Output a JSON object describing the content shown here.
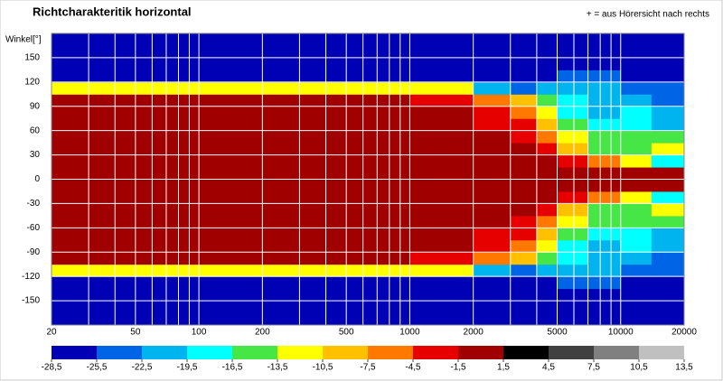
{
  "chart_data": {
    "type": "heatmap",
    "title": "Richtcharakteritik horizontal",
    "annotation": "+ = aus Hörersicht nach rechts",
    "y_label": "Winkel[°]",
    "log_x": true,
    "grid": true,
    "xlim": [
      20,
      20000
    ],
    "xticks": [
      20,
      50,
      100,
      200,
      500,
      1000,
      2000,
      5000,
      10000,
      20000
    ],
    "x_minor_ticks": [
      30,
      40,
      60,
      70,
      80,
      90,
      300,
      400,
      600,
      700,
      800,
      900,
      3000,
      4000,
      6000,
      7000,
      8000,
      9000
    ],
    "ylim": [
      -180,
      180
    ],
    "yticks": [
      -150,
      -120,
      -90,
      -60,
      -30,
      0,
      30,
      60,
      90,
      120,
      150
    ],
    "x_bins": [
      20,
      1000,
      2000,
      3000,
      4000,
      5000,
      7000,
      10000,
      14000,
      20000
    ],
    "y_bins": [
      -180,
      -165,
      -150,
      -135,
      -120,
      -105,
      -90,
      -75,
      -60,
      -45,
      -30,
      -15,
      0,
      15,
      30,
      45,
      60,
      75,
      90,
      105,
      120,
      135,
      150,
      165,
      180
    ],
    "z": [
      [
        -27,
        -27,
        -27,
        -27,
        -27,
        -27,
        -27,
        -27,
        -27
      ],
      [
        -27,
        -27,
        -27,
        -27,
        -27,
        -27,
        -27,
        -27,
        -27
      ],
      [
        -27,
        -27,
        -27,
        -27,
        -27,
        -27,
        -27,
        -27,
        -27
      ],
      [
        -27,
        -27,
        -27,
        -27,
        -27,
        -24,
        -24,
        -27,
        -27
      ],
      [
        -12,
        -12,
        -21,
        -24,
        -21,
        -21,
        -21,
        -24,
        -24
      ],
      [
        0,
        -3,
        -6,
        -9,
        -15,
        -18,
        -21,
        -21,
        -24
      ],
      [
        0,
        0,
        -3,
        -6,
        -12,
        -18,
        -21,
        -18,
        -21
      ],
      [
        0,
        0,
        -3,
        -3,
        -9,
        -15,
        -18,
        -18,
        -21
      ],
      [
        0,
        0,
        0,
        -3,
        -6,
        -12,
        -15,
        -15,
        -15
      ],
      [
        0,
        0,
        0,
        0,
        -3,
        -9,
        -15,
        -15,
        -12
      ],
      [
        0,
        0,
        0,
        0,
        0,
        -3,
        -6,
        -12,
        -18
      ],
      [
        0,
        0,
        0,
        0,
        0,
        0,
        0,
        0,
        0
      ],
      [
        0,
        0,
        0,
        0,
        0,
        0,
        0,
        0,
        0
      ],
      [
        0,
        0,
        0,
        0,
        0,
        -3,
        -6,
        -12,
        -18
      ],
      [
        0,
        0,
        0,
        0,
        -3,
        -9,
        -15,
        -15,
        -12
      ],
      [
        0,
        0,
        0,
        -3,
        -6,
        -12,
        -15,
        -15,
        -15
      ],
      [
        0,
        0,
        -3,
        -3,
        -9,
        -15,
        -18,
        -18,
        -21
      ],
      [
        0,
        0,
        -3,
        -6,
        -12,
        -18,
        -21,
        -18,
        -21
      ],
      [
        0,
        -3,
        -6,
        -9,
        -15,
        -18,
        -21,
        -21,
        -24
      ],
      [
        -12,
        -12,
        -21,
        -24,
        -21,
        -21,
        -21,
        -24,
        -24
      ],
      [
        -27,
        -27,
        -27,
        -27,
        -27,
        -24,
        -24,
        -27,
        -27
      ],
      [
        -27,
        -27,
        -27,
        -27,
        -27,
        -27,
        -27,
        -27,
        -27
      ],
      [
        -27,
        -27,
        -27,
        -27,
        -27,
        -27,
        -27,
        -27,
        -27
      ],
      [
        -27,
        -27,
        -27,
        -27,
        -27,
        -27,
        -27,
        -27,
        -27
      ]
    ],
    "colorbar": {
      "bounds": [
        {
          "value": -28.5,
          "label": "-28,5"
        },
        {
          "value": -25.5,
          "label": "-25,5"
        },
        {
          "value": -22.5,
          "label": "-22,5"
        },
        {
          "value": -19.5,
          "label": "-19,5"
        },
        {
          "value": -16.5,
          "label": "-16,5"
        },
        {
          "value": -13.5,
          "label": "-13,5"
        },
        {
          "value": -10.5,
          "label": "-10,5"
        },
        {
          "value": -7.5,
          "label": "-7,5"
        },
        {
          "value": -4.5,
          "label": "-4,5"
        },
        {
          "value": -1.5,
          "label": "-1,5"
        },
        {
          "value": 1.5,
          "label": "1,5"
        },
        {
          "value": 4.5,
          "label": "4,5"
        },
        {
          "value": 7.5,
          "label": "7,5"
        },
        {
          "value": 10.5,
          "label": "10,5"
        },
        {
          "value": 13.5,
          "label": "13,5"
        }
      ],
      "colors": [
        "#0000b4",
        "#0064e6",
        "#00b4f0",
        "#00ffff",
        "#46e646",
        "#ffff00",
        "#ffc000",
        "#ff7800",
        "#e60000",
        "#a00000",
        "#000000",
        "#404040",
        "#808080",
        "#c0c0c0"
      ]
    }
  }
}
